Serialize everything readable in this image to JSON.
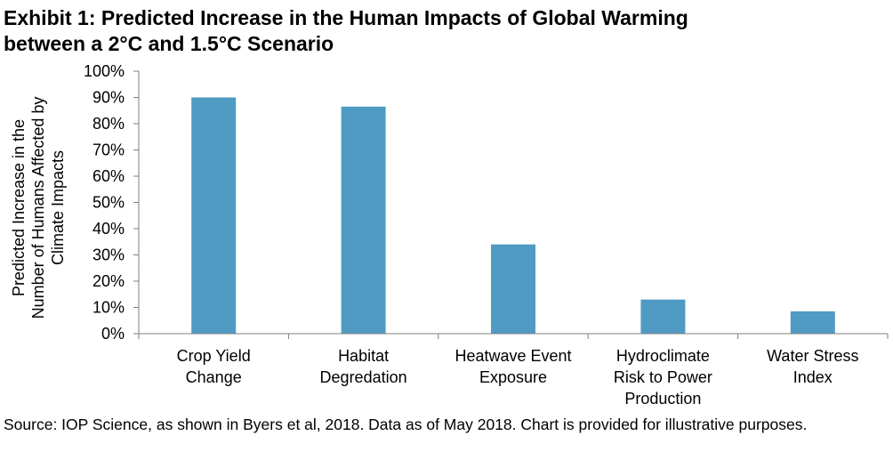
{
  "title_lines": [
    "Exhibit 1: Predicted Increase in the Human Impacts of Global Warming",
    "between a 2°C and 1.5°C Scenario"
  ],
  "source_text": "Source: IOP Science, as shown in Byers et al, 2018.  Data as of May 2018.  Chart is provided for illustrative purposes.",
  "chart_data": {
    "type": "bar",
    "categories": [
      [
        "Crop Yield",
        "Change"
      ],
      [
        "Habitat",
        "Degredation"
      ],
      [
        "Heatwave Event",
        "Exposure"
      ],
      [
        "Hydroclimate",
        "Risk to Power",
        "Production"
      ],
      [
        "Water Stress",
        "Index"
      ]
    ],
    "values": [
      90,
      86.5,
      34,
      13,
      8.5
    ],
    "ylabel_lines": [
      "Predicted Increase in the",
      "Number of Humans Affected by",
      "Climate Impacts"
    ],
    "ylim": [
      0,
      100
    ],
    "yticks": [
      "0%",
      "10%",
      "20%",
      "30%",
      "40%",
      "50%",
      "60%",
      "70%",
      "80%",
      "90%",
      "100%"
    ],
    "grid": false,
    "colors": {
      "bar": "#4f9bc4",
      "axis": "#7f7f7f"
    }
  }
}
